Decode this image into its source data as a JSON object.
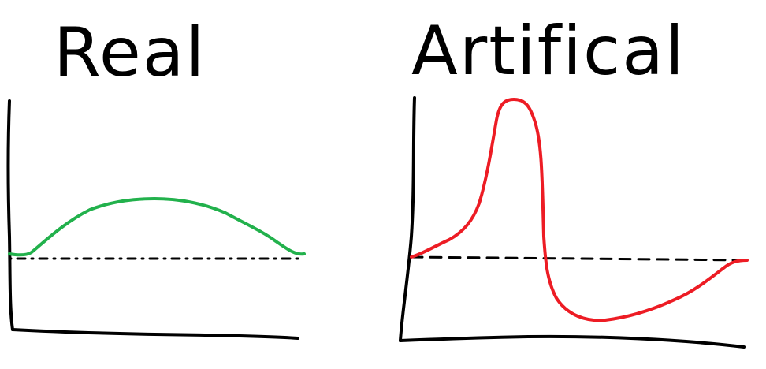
{
  "panels": [
    {
      "title": "Real",
      "curve_color": "#22b14c"
    },
    {
      "title": "Artifical",
      "curve_color": "#ed1c24"
    }
  ]
}
